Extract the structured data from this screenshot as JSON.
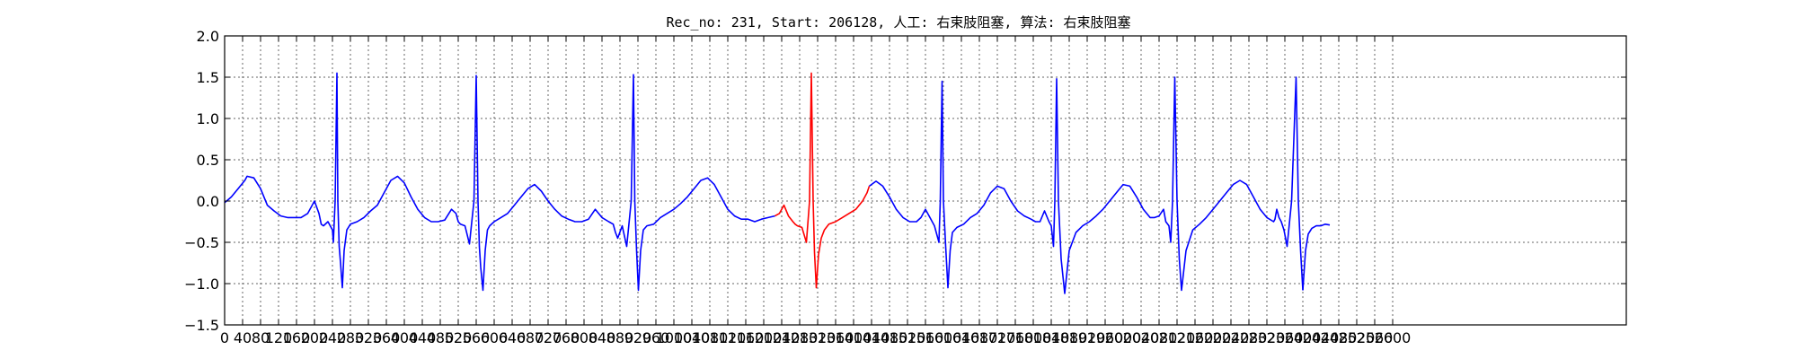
{
  "chart_data": {
    "type": "line",
    "title": "Rec_no: 231, Start: 206128, 人工: 右束肢阻塞, 算法: 右束肢阻塞",
    "xlabel": "",
    "ylabel": "",
    "xlim": [
      0,
      3120
    ],
    "ylim": [
      -1.5,
      2.0
    ],
    "grid": true,
    "yticks": [
      -1.5,
      -1.0,
      -0.5,
      0.0,
      0.5,
      1.0,
      1.5,
      2.0
    ],
    "ytick_labels": [
      "−1.5",
      "−1.0",
      "−0.5",
      "0.0",
      "0.5",
      "1.0",
      "1.5",
      "2.0"
    ],
    "xticks": [
      0,
      40,
      80,
      120,
      160,
      200,
      240,
      280,
      320,
      360,
      400,
      440,
      480,
      520,
      560,
      600,
      640,
      680,
      720,
      760,
      800,
      840,
      880,
      920,
      960,
      1000,
      1040,
      1080,
      1120,
      1160,
      1200,
      1240,
      1280,
      1320,
      1360,
      1400,
      1440,
      1480,
      1520,
      1560,
      1600,
      1640,
      1680,
      1720,
      1760,
      1800,
      1840,
      1880,
      1920,
      1960,
      2000,
      2040,
      2080,
      2120,
      2160,
      2200,
      2240,
      2280,
      2320,
      2360,
      2400,
      2440,
      2480,
      2520,
      2560,
      2600
    ],
    "xtick_labels": [
      "0",
      "40",
      "80",
      "120",
      "160",
      "200",
      "240",
      "280",
      "320",
      "360",
      "400",
      "440",
      "480",
      "520",
      "560",
      "600",
      "640",
      "680",
      "720",
      "760",
      "800",
      "840",
      "880",
      "920",
      "960",
      "1000",
      "1040",
      "1080",
      "1120",
      "1160",
      "1200",
      "1240",
      "1280",
      "1320",
      "1360",
      "1400",
      "1440",
      "1480",
      "1520",
      "1560",
      "1600",
      "1640",
      "1680",
      "1720",
      "1760",
      "1800",
      "1840",
      "1880",
      "1920",
      "1960",
      "2000",
      "2040",
      "2080",
      "2120",
      "2160",
      "2200",
      "2240",
      "2280",
      "2320",
      "2360",
      "2400",
      "2440",
      "2480",
      "2520",
      "2560",
      "2600"
    ],
    "series": [
      {
        "color": "#0000ff",
        "x": [
          0,
          15,
          30,
          45,
          50,
          65,
          80,
          95,
          110,
          125,
          140,
          155,
          170,
          185,
          200,
          210,
          215,
          220,
          230,
          240,
          242,
          246,
          250,
          252,
          255,
          258,
          262,
          266,
          272,
          280,
          295,
          310,
          325,
          340,
          355,
          370,
          385,
          400,
          415,
          430,
          445,
          460,
          475,
          490,
          505,
          515,
          520,
          525,
          535,
          545,
          555,
          560,
          564,
          567,
          570,
          575,
          580,
          585,
          590,
          600,
          615,
          630,
          645,
          660,
          675,
          690,
          705,
          720,
          735,
          750,
          765,
          780,
          795,
          810,
          825,
          840,
          855,
          865,
          870,
          875,
          885,
          895,
          905,
          910,
          913,
          917,
          921,
          926,
          932,
          940,
          955,
          970,
          985,
          1000,
          1015,
          1030,
          1045,
          1060,
          1075,
          1090,
          1105,
          1120,
          1135,
          1150,
          1165,
          1180,
          1195,
          1210,
          1225
        ],
        "y": [
          -0.02,
          0.05,
          0.15,
          0.25,
          0.3,
          0.28,
          0.15,
          -0.05,
          -0.12,
          -0.18,
          -0.2,
          -0.2,
          -0.2,
          -0.15,
          0.0,
          -0.15,
          -0.28,
          -0.3,
          -0.25,
          -0.35,
          -0.5,
          0.0,
          1.55,
          0.0,
          -0.55,
          -0.75,
          -1.05,
          -0.6,
          -0.35,
          -0.28,
          -0.25,
          -0.2,
          -0.12,
          -0.05,
          0.1,
          0.25,
          0.3,
          0.22,
          0.05,
          -0.1,
          -0.2,
          -0.25,
          -0.25,
          -0.23,
          -0.1,
          -0.15,
          -0.25,
          -0.28,
          -0.3,
          -0.52,
          0.0,
          1.52,
          0.0,
          -0.55,
          -0.8,
          -1.08,
          -0.6,
          -0.35,
          -0.3,
          -0.25,
          -0.2,
          -0.15,
          -0.05,
          0.05,
          0.15,
          0.2,
          0.12,
          0.0,
          -0.1,
          -0.18,
          -0.22,
          -0.25,
          -0.25,
          -0.22,
          -0.1,
          -0.2,
          -0.25,
          -0.28,
          -0.38,
          -0.45,
          -0.3,
          -0.55,
          0.0,
          1.53,
          0.0,
          -0.6,
          -1.08,
          -0.6,
          -0.35,
          -0.3,
          -0.28,
          -0.2,
          -0.15,
          -0.1,
          -0.03,
          0.05,
          0.15,
          0.25,
          0.28,
          0.2,
          0.05,
          -0.1,
          -0.18,
          -0.22,
          -0.22,
          -0.25,
          -0.22,
          -0.2,
          -0.18
        ]
      },
      {
        "color": "#ff0000",
        "x": [
          1225,
          1235,
          1245,
          1255,
          1265,
          1270,
          1275,
          1285,
          1295,
          1302,
          1306,
          1310,
          1313,
          1317,
          1322,
          1328,
          1335,
          1345,
          1360,
          1375,
          1390,
          1405,
          1420,
          1430,
          1435
        ],
        "y": [
          -0.18,
          -0.15,
          -0.05,
          -0.18,
          -0.25,
          -0.28,
          -0.3,
          -0.32,
          -0.5,
          0.0,
          1.55,
          0.0,
          -0.62,
          -1.05,
          -0.65,
          -0.45,
          -0.35,
          -0.28,
          -0.25,
          -0.2,
          -0.15,
          -0.1,
          0.0,
          0.1,
          0.18
        ]
      },
      {
        "color": "#0000ff",
        "x": [
          1435,
          1450,
          1465,
          1480,
          1495,
          1510,
          1525,
          1540,
          1550,
          1560,
          1570,
          1580,
          1590,
          1593,
          1597,
          1600,
          1605,
          1610,
          1615,
          1620,
          1630,
          1645,
          1660,
          1675,
          1690,
          1705,
          1720,
          1735,
          1750,
          1765,
          1780,
          1795,
          1805,
          1815,
          1825,
          1835,
          1840,
          1845,
          1848,
          1852,
          1856,
          1862,
          1870,
          1880,
          1895,
          1910,
          1925,
          1940,
          1955,
          1970,
          1985,
          2000,
          2015,
          2030,
          2045,
          2060,
          2070,
          2080,
          2090,
          2095,
          2102,
          2106,
          2110,
          2115,
          2120,
          2125,
          2130,
          2140,
          2155,
          2170,
          2185,
          2200,
          2215,
          2230,
          2245,
          2260,
          2275,
          2290,
          2305,
          2320,
          2335,
          2338,
          2342,
          2347,
          2352,
          2358,
          2365,
          2375,
          2385,
          2390,
          2395,
          2400
        ],
        "y": [
          0.18,
          0.24,
          0.18,
          0.05,
          -0.1,
          -0.2,
          -0.25,
          -0.25,
          -0.2,
          -0.1,
          -0.2,
          -0.3,
          -0.5,
          0.0,
          1.45,
          0.0,
          -0.55,
          -1.05,
          -0.6,
          -0.38,
          -0.32,
          -0.28,
          -0.2,
          -0.15,
          -0.05,
          0.1,
          0.18,
          0.15,
          0.0,
          -0.12,
          -0.18,
          -0.22,
          -0.25,
          -0.25,
          -0.12,
          -0.25,
          -0.3,
          -0.55,
          0.0,
          1.48,
          0.0,
          -0.7,
          -1.12,
          -0.6,
          -0.38,
          -0.3,
          -0.25,
          -0.18,
          -0.1,
          0.0,
          0.1,
          0.2,
          0.18,
          0.05,
          -0.1,
          -0.2,
          -0.2,
          -0.18,
          -0.1,
          -0.25,
          -0.3,
          -0.5,
          0.0,
          1.5,
          0.0,
          -0.7,
          -1.08,
          -0.6,
          -0.35,
          -0.28,
          -0.2,
          -0.1,
          0.0,
          0.1,
          0.2,
          0.25,
          0.2,
          0.05,
          -0.1,
          -0.2,
          -0.25,
          -0.22,
          -0.1,
          -0.2,
          -0.25,
          -0.35,
          -0.55,
          0.0,
          1.5,
          0.0,
          -0.6,
          -1.08
        ]
      },
      {
        "color": "#0000ff",
        "x": [
          2400,
          2406,
          2412,
          2420,
          2430,
          2440,
          2450,
          2460
        ],
        "y": [
          -1.08,
          -0.6,
          -0.4,
          -0.33,
          -0.3,
          -0.3,
          -0.28,
          -0.29
        ]
      }
    ]
  }
}
